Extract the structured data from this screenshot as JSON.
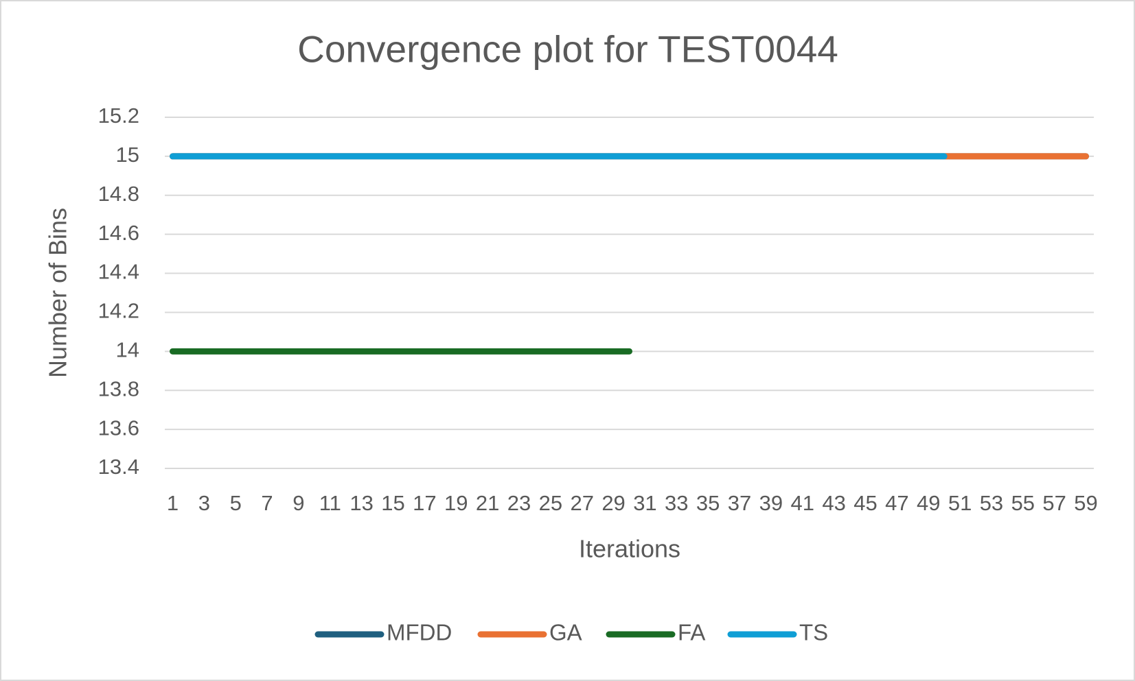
{
  "chart_data": {
    "type": "line",
    "title": "Convergence plot for TEST0044",
    "x_label": "Iterations",
    "y_label": "Number of Bins",
    "categories": [
      1,
      null,
      3,
      null,
      5,
      null,
      7,
      null,
      9,
      null,
      11,
      null,
      13,
      null,
      15,
      null,
      17,
      null,
      19,
      null,
      21,
      null,
      23,
      null,
      25,
      null,
      27,
      null,
      29,
      null,
      31,
      null,
      33,
      null,
      35,
      null,
      37,
      null,
      39,
      null,
      41,
      null,
      43,
      null,
      45,
      null,
      47,
      null,
      49,
      null,
      51,
      null,
      53,
      null,
      55,
      null,
      57,
      null,
      59
    ],
    "series": [
      {
        "name": "MFDD",
        "color": "#1f5f7f",
        "values": [
          15,
          15,
          15,
          15,
          15,
          15,
          15,
          15,
          15,
          15,
          15,
          15,
          15,
          15,
          15,
          15,
          15,
          15,
          15,
          15,
          15,
          15,
          15,
          15,
          15,
          15,
          15,
          15,
          15,
          15,
          15,
          15,
          15,
          15,
          15,
          15,
          15,
          15,
          15,
          15,
          15,
          15,
          15,
          15,
          15,
          15,
          15,
          15,
          15,
          15,
          15,
          15,
          15,
          15,
          15,
          15,
          15,
          15,
          15
        ]
      },
      {
        "name": "GA",
        "color": "#e97132",
        "values": [
          15,
          15,
          15,
          15,
          15,
          15,
          15,
          15,
          15,
          15,
          15,
          15,
          15,
          15,
          15,
          15,
          15,
          15,
          15,
          15,
          15,
          15,
          15,
          15,
          15,
          15,
          15,
          15,
          15,
          15,
          15,
          15,
          15,
          15,
          15,
          15,
          15,
          15,
          15,
          15,
          15,
          15,
          15,
          15,
          15,
          15,
          15,
          15,
          15,
          15,
          15,
          15,
          15,
          15,
          15,
          15,
          15,
          15,
          15
        ]
      },
      {
        "name": "FA",
        "color": "#196b24",
        "values": [
          14,
          14,
          14,
          14,
          14,
          14,
          14,
          14,
          14,
          14,
          14,
          14,
          14,
          14,
          14,
          14,
          14,
          14,
          14,
          14,
          14,
          14,
          14,
          14,
          14,
          14,
          14,
          14,
          14,
          14,
          null,
          null,
          null,
          null,
          null,
          null,
          null,
          null,
          null,
          null,
          null,
          null,
          null,
          null,
          null,
          null,
          null,
          null,
          null,
          null,
          null,
          null,
          null,
          null,
          null,
          null,
          null,
          null,
          null
        ]
      },
      {
        "name": "TS",
        "color": "#0f9ed5",
        "values": [
          15,
          15,
          15,
          15,
          15,
          15,
          15,
          15,
          15,
          15,
          15,
          15,
          15,
          15,
          15,
          15,
          15,
          15,
          15,
          15,
          15,
          15,
          15,
          15,
          15,
          15,
          15,
          15,
          15,
          15,
          15,
          15,
          15,
          15,
          15,
          15,
          15,
          15,
          15,
          15,
          15,
          15,
          15,
          15,
          15,
          15,
          15,
          15,
          15,
          15,
          null,
          null,
          null,
          null,
          null,
          null,
          null,
          null,
          null
        ]
      }
    ],
    "ylim": [
      13.4,
      15.2
    ],
    "yticks": [
      13.4,
      13.6,
      13.8,
      14,
      14.2,
      14.4,
      14.6,
      14.8,
      15,
      15.2
    ],
    "grid": true,
    "legend": "bottom"
  }
}
